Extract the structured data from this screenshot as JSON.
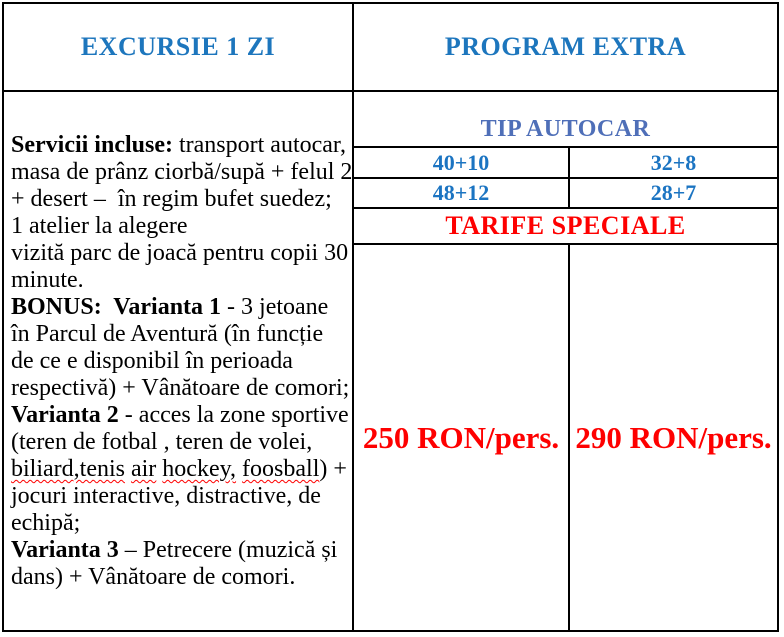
{
  "colors": {
    "header-blue": "#1d76bd",
    "numbers-blue": "#1b74c2",
    "tip-blue": "#4f6fb8",
    "red": "#fe0000",
    "ink": "#000000",
    "border": "#000000",
    "paper": "#ffffff"
  },
  "header": {
    "left": "EXCURSIE 1 ZI",
    "right": "PROGRAM EXTRA"
  },
  "services": {
    "segments": [
      {
        "text": "Servicii incluse:",
        "bold": true
      },
      {
        "text": " transport autocar,\nmasa de prânz ciorbă/supă + felul 2\n+ desert –  în regim bufet suedez;\n1 atelier la alegere\nvizită parc de joacă pentru copii 30\nminute.\n"
      },
      {
        "text": "BONUS:  Varianta 1",
        "bold": true
      },
      {
        "text": " - 3 jetoane\nîn Parcul de Aventură (în funcție\nde ce e disponibil în perioada\nrespectivă) + Vânătoare de comori;\n"
      },
      {
        "text": "Varianta 2",
        "bold": true
      },
      {
        "text": " - acces la zone sportive\n(teren de fotbal , teren de volei,\n"
      },
      {
        "text": "biliard,tenis",
        "squiggle": true
      },
      {
        "text": " "
      },
      {
        "text": "air",
        "squiggle": true
      },
      {
        "text": " "
      },
      {
        "text": "hockey,",
        "squiggle": true
      },
      {
        "text": " "
      },
      {
        "text": "foosball",
        "squiggle": true
      },
      {
        "text": ") +\njocuri interactive, distractive, de\nechipă;\n"
      },
      {
        "text": "Varianta 3",
        "bold": true
      },
      {
        "text": " – Petrecere (muzică și\ndans) + Vânătoare de comori."
      }
    ]
  },
  "bus_table": {
    "title": "TIP AUTOCAR",
    "rows": [
      [
        "40+10",
        "32+8"
      ],
      [
        "48+12",
        "28+7"
      ]
    ],
    "tariffs_title": "TARIFE SPECIALE",
    "prices": [
      "250 RON/pers.",
      "290 RON/pers."
    ]
  }
}
